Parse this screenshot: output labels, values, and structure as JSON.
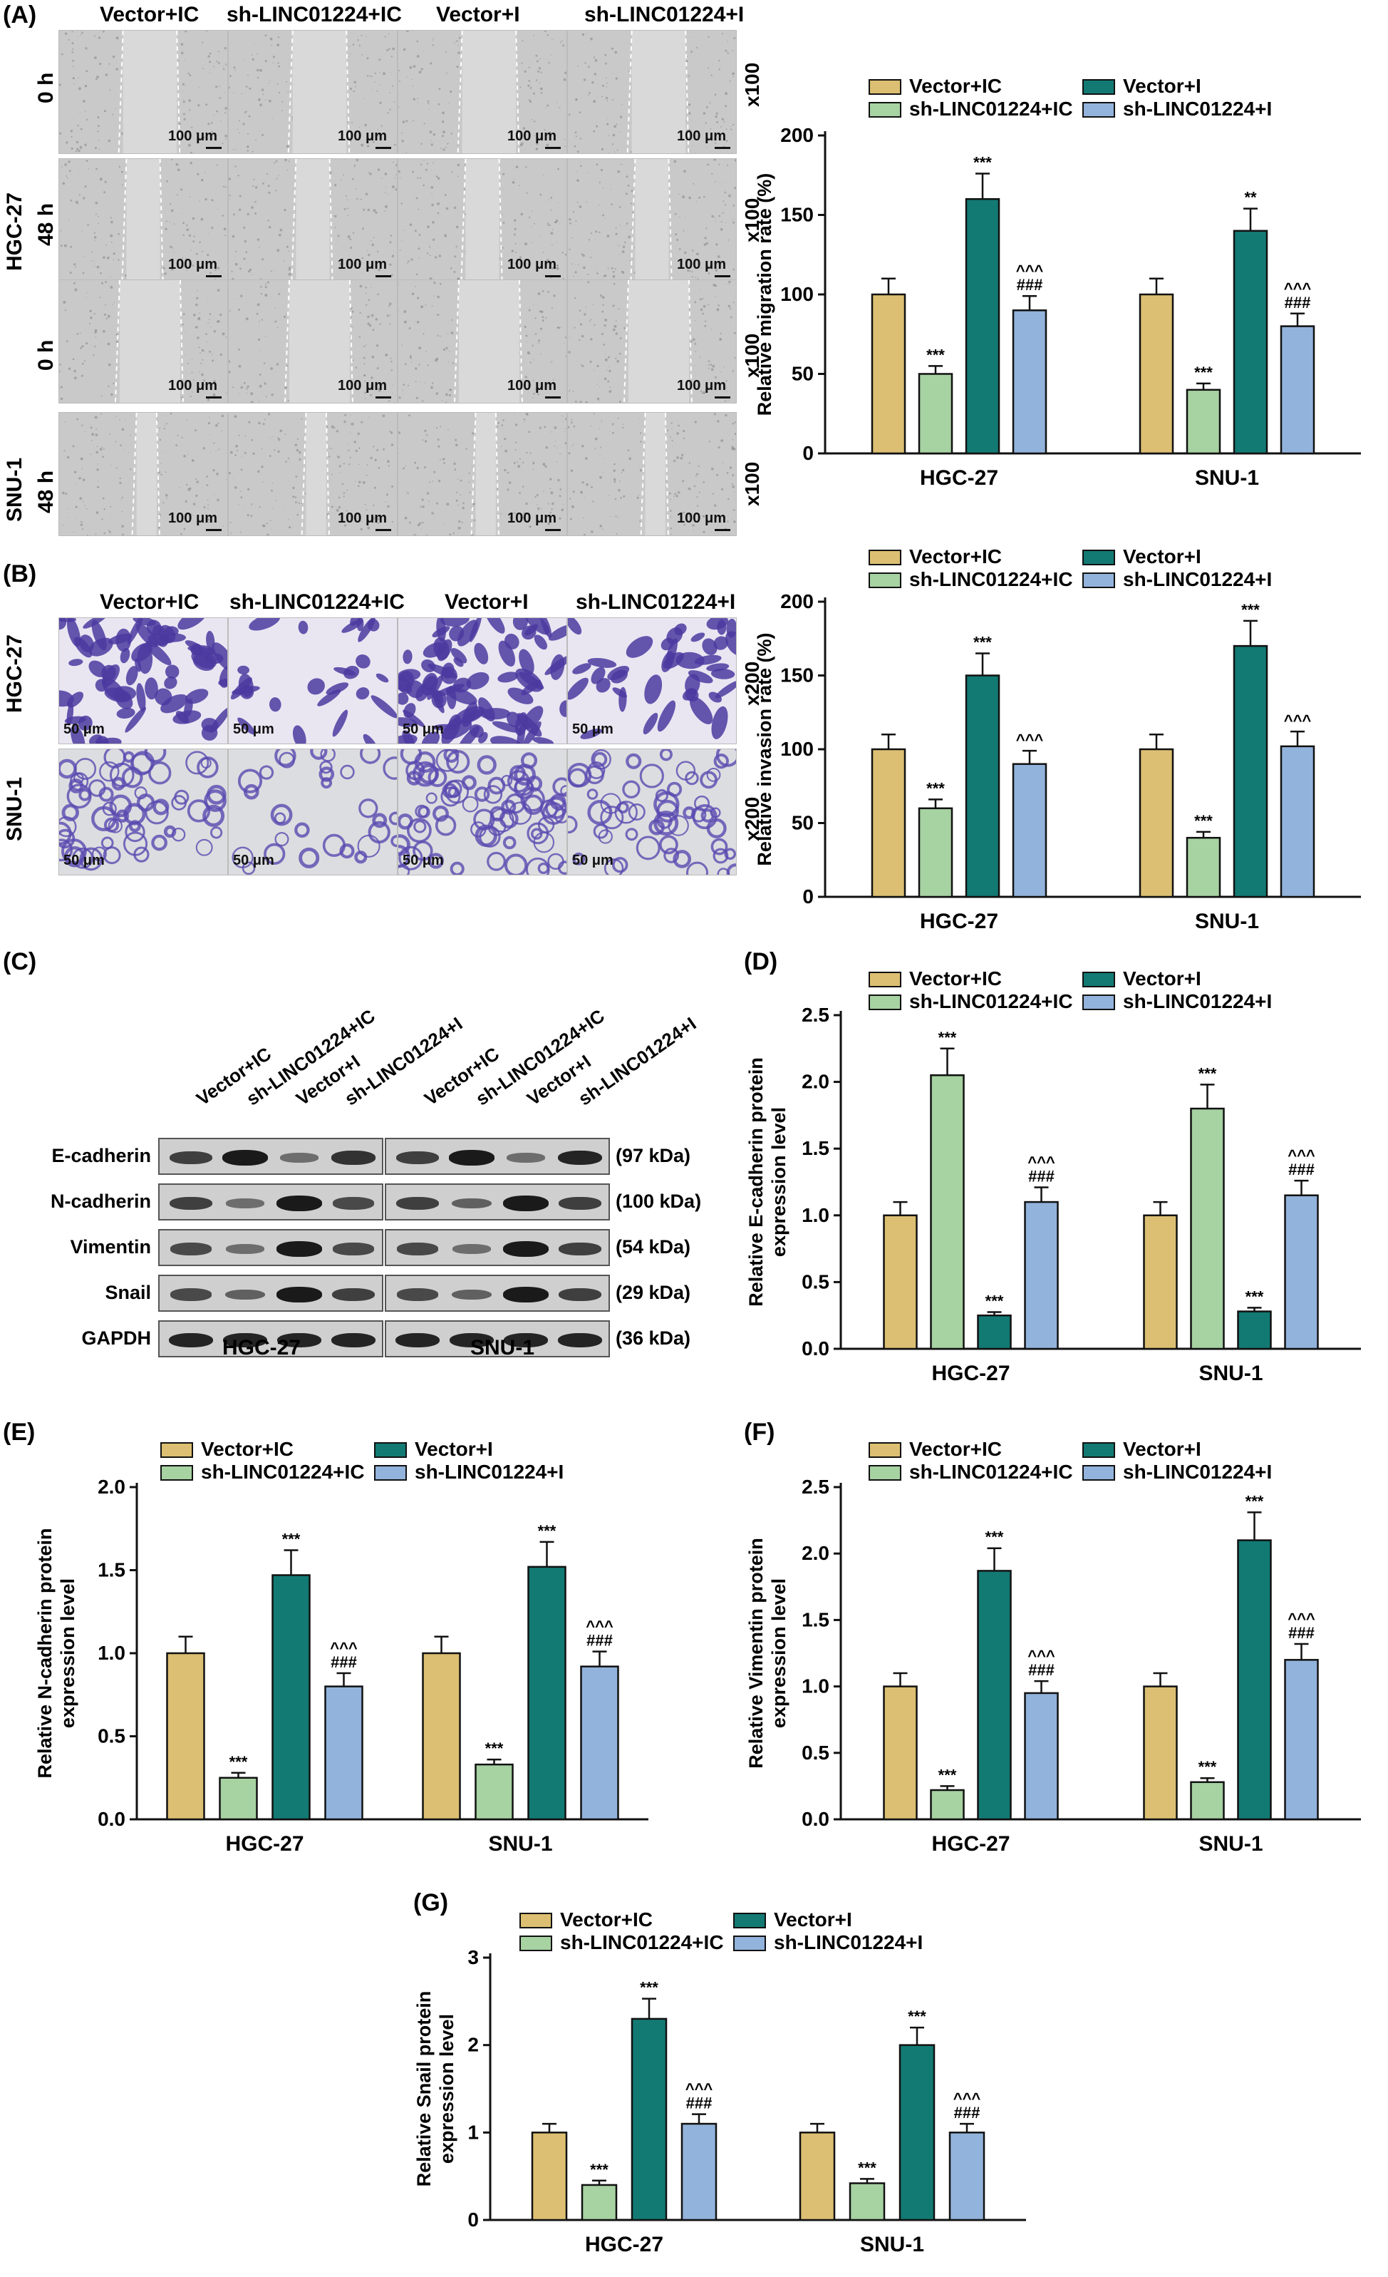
{
  "panels": {
    "a": "(A)",
    "b": "(B)",
    "c": "(C)",
    "d": "(D)",
    "e": "(E)",
    "f": "(F)",
    "g": "(G)"
  },
  "groups": [
    "Vector+IC",
    "sh-LINC01224+IC",
    "Vector+I",
    "sh-LINC01224+I"
  ],
  "colors": [
    "#dcbf72",
    "#a7d2a2",
    "#127a73",
    "#92b3db"
  ],
  "cells": [
    "HGC-27",
    "SNU-1"
  ],
  "wound": {
    "timepoints": [
      "0 h",
      "48 h",
      "0 h",
      "48 h"
    ],
    "scale": "100 μm",
    "mag": "x100"
  },
  "transwell": {
    "scale": "50 μm",
    "mag": "x200"
  },
  "western": {
    "proteins": [
      "E-cadherin",
      "N-cadherin",
      "Vimentin",
      "Snail",
      "GAPDH"
    ],
    "sizes": [
      "(97 kDa)",
      "(100 kDa)",
      "(54 kDa)",
      "(29 kDa)",
      "(36 kDa)"
    ]
  },
  "chart_data": [
    {
      "id": "A",
      "type": "bar",
      "ylabel": "Relative migration rate (%)",
      "ylim": [
        0,
        200
      ],
      "yticks": [
        0,
        50,
        100,
        150,
        200
      ],
      "categories": [
        "HGC-27",
        "SNU-1"
      ],
      "series": [
        {
          "name": "Vector+IC",
          "values": [
            100,
            100
          ],
          "err": [
            10,
            10
          ],
          "ann": [
            "",
            ""
          ]
        },
        {
          "name": "sh-LINC01224+IC",
          "values": [
            50,
            40
          ],
          "err": [
            5,
            4
          ],
          "ann": [
            "***",
            "***"
          ]
        },
        {
          "name": "Vector+I",
          "values": [
            160,
            140
          ],
          "err": [
            16,
            14
          ],
          "ann": [
            "***",
            "**"
          ]
        },
        {
          "name": "sh-LINC01224+I",
          "values": [
            90,
            80
          ],
          "err": [
            9,
            8
          ],
          "ann": [
            "^^^\n###",
            "^^^\n###"
          ]
        }
      ]
    },
    {
      "id": "B",
      "type": "bar",
      "ylabel": "Relative invasion rate (%)",
      "ylim": [
        0,
        200
      ],
      "yticks": [
        0,
        50,
        100,
        150,
        200
      ],
      "categories": [
        "HGC-27",
        "SNU-1"
      ],
      "series": [
        {
          "name": "Vector+IC",
          "values": [
            100,
            100
          ],
          "err": [
            10,
            10
          ],
          "ann": [
            "",
            ""
          ]
        },
        {
          "name": "sh-LINC01224+IC",
          "values": [
            60,
            40
          ],
          "err": [
            6,
            4
          ],
          "ann": [
            "***",
            "***"
          ]
        },
        {
          "name": "Vector+I",
          "values": [
            150,
            170
          ],
          "err": [
            15,
            17
          ],
          "ann": [
            "***",
            "***"
          ]
        },
        {
          "name": "sh-LINC01224+I",
          "values": [
            90,
            102
          ],
          "err": [
            9,
            10
          ],
          "ann": [
            "^^^",
            "^^^"
          ]
        }
      ]
    },
    {
      "id": "D",
      "type": "bar",
      "ylabel": [
        "Relative E-cadherin protein",
        "expression level"
      ],
      "ylim": [
        0,
        2.5
      ],
      "yticks": [
        0.0,
        0.5,
        1.0,
        1.5,
        2.0,
        2.5
      ],
      "categories": [
        "HGC-27",
        "SNU-1"
      ],
      "series": [
        {
          "name": "Vector+IC",
          "values": [
            1.0,
            1.0
          ],
          "err": [
            0.1,
            0.1
          ],
          "ann": [
            "",
            ""
          ]
        },
        {
          "name": "sh-LINC01224+IC",
          "values": [
            2.05,
            1.8
          ],
          "err": [
            0.2,
            0.18
          ],
          "ann": [
            "***",
            "***"
          ]
        },
        {
          "name": "Vector+I",
          "values": [
            0.25,
            0.28
          ],
          "err": [
            0.025,
            0.028
          ],
          "ann": [
            "***",
            "***"
          ]
        },
        {
          "name": "sh-LINC01224+I",
          "values": [
            1.1,
            1.15
          ],
          "err": [
            0.11,
            0.11
          ],
          "ann": [
            "^^^\n###",
            "^^^\n###"
          ]
        }
      ]
    },
    {
      "id": "E",
      "type": "bar",
      "ylabel": [
        "Relative N-cadherin protein",
        "expression level"
      ],
      "ylim": [
        0,
        2.0
      ],
      "yticks": [
        0.0,
        0.5,
        1.0,
        1.5,
        2.0
      ],
      "categories": [
        "HGC-27",
        "SNU-1"
      ],
      "series": [
        {
          "name": "Vector+IC",
          "values": [
            1.0,
            1.0
          ],
          "err": [
            0.1,
            0.1
          ],
          "ann": [
            "",
            ""
          ]
        },
        {
          "name": "sh-LINC01224+IC",
          "values": [
            0.25,
            0.33
          ],
          "err": [
            0.03,
            0.03
          ],
          "ann": [
            "***",
            "***"
          ]
        },
        {
          "name": "Vector+I",
          "values": [
            1.47,
            1.52
          ],
          "err": [
            0.15,
            0.15
          ],
          "ann": [
            "***",
            "***"
          ]
        },
        {
          "name": "sh-LINC01224+I",
          "values": [
            0.8,
            0.92
          ],
          "err": [
            0.08,
            0.09
          ],
          "ann": [
            "^^^\n###",
            "^^^\n###"
          ]
        }
      ]
    },
    {
      "id": "F",
      "type": "bar",
      "ylabel": [
        "Relative Vimentin protein",
        "expression level"
      ],
      "ylim": [
        0,
        2.5
      ],
      "yticks": [
        0.0,
        0.5,
        1.0,
        1.5,
        2.0,
        2.5
      ],
      "categories": [
        "HGC-27",
        "SNU-1"
      ],
      "series": [
        {
          "name": "Vector+IC",
          "values": [
            1.0,
            1.0
          ],
          "err": [
            0.1,
            0.1
          ],
          "ann": [
            "",
            ""
          ]
        },
        {
          "name": "sh-LINC01224+IC",
          "values": [
            0.22,
            0.28
          ],
          "err": [
            0.03,
            0.03
          ],
          "ann": [
            "***",
            "***"
          ]
        },
        {
          "name": "Vector+I",
          "values": [
            1.87,
            2.1
          ],
          "err": [
            0.17,
            0.21
          ],
          "ann": [
            "***",
            "***"
          ]
        },
        {
          "name": "sh-LINC01224+I",
          "values": [
            0.95,
            1.2
          ],
          "err": [
            0.09,
            0.12
          ],
          "ann": [
            "^^^\n###",
            "^^^\n###"
          ]
        }
      ]
    },
    {
      "id": "G",
      "type": "bar",
      "ylabel": [
        "Relative Snail protein",
        "expression level"
      ],
      "ylim": [
        0,
        3
      ],
      "yticks": [
        0,
        1,
        2,
        3
      ],
      "categories": [
        "HGC-27",
        "SNU-1"
      ],
      "series": [
        {
          "name": "Vector+IC",
          "values": [
            1.0,
            1.0
          ],
          "err": [
            0.1,
            0.1
          ],
          "ann": [
            "",
            ""
          ]
        },
        {
          "name": "sh-LINC01224+IC",
          "values": [
            0.4,
            0.42
          ],
          "err": [
            0.05,
            0.05
          ],
          "ann": [
            "***",
            "***"
          ]
        },
        {
          "name": "Vector+I",
          "values": [
            2.3,
            2.0
          ],
          "err": [
            0.23,
            0.2
          ],
          "ann": [
            "***",
            "***"
          ]
        },
        {
          "name": "sh-LINC01224+I",
          "values": [
            1.1,
            1.0
          ],
          "err": [
            0.11,
            0.1
          ],
          "ann": [
            "^^^\n###",
            "^^^\n###"
          ]
        }
      ]
    }
  ]
}
